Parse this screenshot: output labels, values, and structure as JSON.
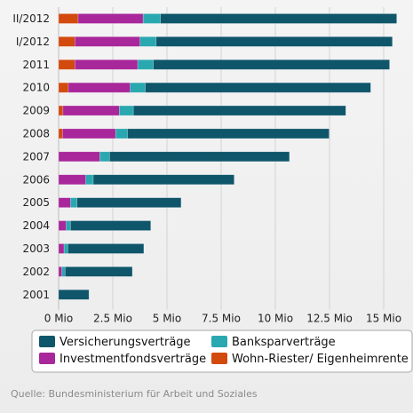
{
  "chart_data": {
    "type": "bar",
    "orientation": "horizontal",
    "stacked": true,
    "categories": [
      "II/2012",
      "I/2012",
      "2011",
      "2010",
      "2009",
      "2008",
      "2007",
      "2006",
      "2005",
      "2004",
      "2003",
      "2002",
      "2001"
    ],
    "series": [
      {
        "name": "Wohn-Riester/ Eigenheimrente",
        "color": "#d24a0e",
        "values": [
          0.9,
          0.75,
          0.75,
          0.45,
          0.2,
          0.18,
          0.0,
          0.0,
          0.0,
          0.0,
          0.0,
          0.0,
          0.0
        ]
      },
      {
        "name": "Investmentfondsverträge",
        "color": "#a8279a",
        "values": [
          3.0,
          3.0,
          2.9,
          2.85,
          2.6,
          2.45,
          1.9,
          1.25,
          0.55,
          0.35,
          0.25,
          0.15,
          0.0
        ]
      },
      {
        "name": "Banksparverträge",
        "color": "#2aa8b0",
        "values": [
          0.8,
          0.75,
          0.72,
          0.7,
          0.65,
          0.55,
          0.45,
          0.35,
          0.3,
          0.2,
          0.18,
          0.15,
          0.0
        ]
      },
      {
        "name": "Versicherungsverträge",
        "color": "#0f566b",
        "values": [
          10.9,
          10.9,
          10.9,
          10.4,
          9.8,
          9.3,
          8.3,
          6.5,
          4.8,
          3.7,
          3.5,
          3.1,
          1.4
        ]
      }
    ],
    "xticks": [
      "0 Mio",
      "2.5 Mio",
      "5 Mio",
      "7.5 Mio",
      "10 Mio",
      "12.5 Mio",
      "15 Mio"
    ],
    "xlim": [
      0,
      16
    ],
    "grid": true,
    "legend": {
      "position": "bottom",
      "order": [
        "Versicherungsverträge",
        "Banksparverträge",
        "Investmentfondsverträge",
        "Wohn-Riester/ Eigenheimrente"
      ]
    }
  },
  "source": "Quelle: Bundesministerium für Arbeit und Soziales"
}
